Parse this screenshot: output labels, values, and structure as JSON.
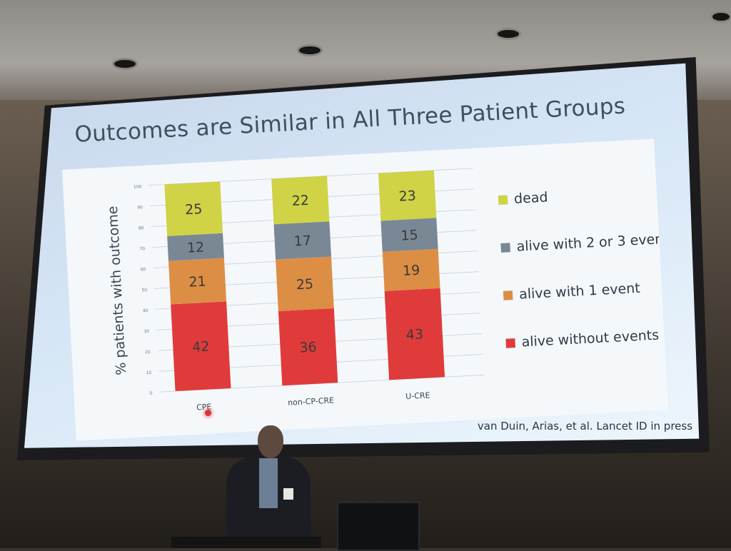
{
  "slide": {
    "title": "Outcomes are Similar in All Three Patient Groups",
    "citation": "van Duin, Arias, et al. Lancet ID in press"
  },
  "chart_data": {
    "type": "bar",
    "stacked": true,
    "title": "Outcomes are Similar in All Three Patient Groups",
    "xlabel": "",
    "ylabel": "% patients with outcome",
    "ylim": [
      0,
      100
    ],
    "yticks": [
      0,
      10,
      20,
      30,
      40,
      50,
      60,
      70,
      80,
      90,
      100
    ],
    "grid": true,
    "legend_position": "right",
    "categories": [
      "CPE",
      "non-CP-CRE",
      "U-CRE"
    ],
    "series": [
      {
        "name": "alive without events",
        "color": "#e03b3b",
        "values": [
          42,
          36,
          43
        ]
      },
      {
        "name": "alive with 1 event",
        "color": "#dc8e45",
        "values": [
          21,
          25,
          19
        ]
      },
      {
        "name": "alive with 2 or 3 events",
        "color": "#7a8896",
        "values": [
          12,
          17,
          15
        ]
      },
      {
        "name": "dead",
        "color": "#cfd345",
        "values": [
          25,
          22,
          23
        ]
      }
    ],
    "legend_order": [
      "dead",
      "alive with 2 or 3 events",
      "alive with 1 event",
      "alive without events"
    ]
  }
}
